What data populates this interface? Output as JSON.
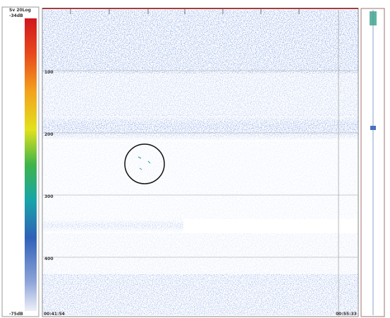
{
  "scale": {
    "title": "Sv 20Log",
    "max": "-34dB",
    "min": "-75dB"
  },
  "depth_labels": [
    "100",
    "200",
    "300",
    "400"
  ],
  "time": {
    "start": "00:41:54",
    "end": "00:55:33"
  }
}
